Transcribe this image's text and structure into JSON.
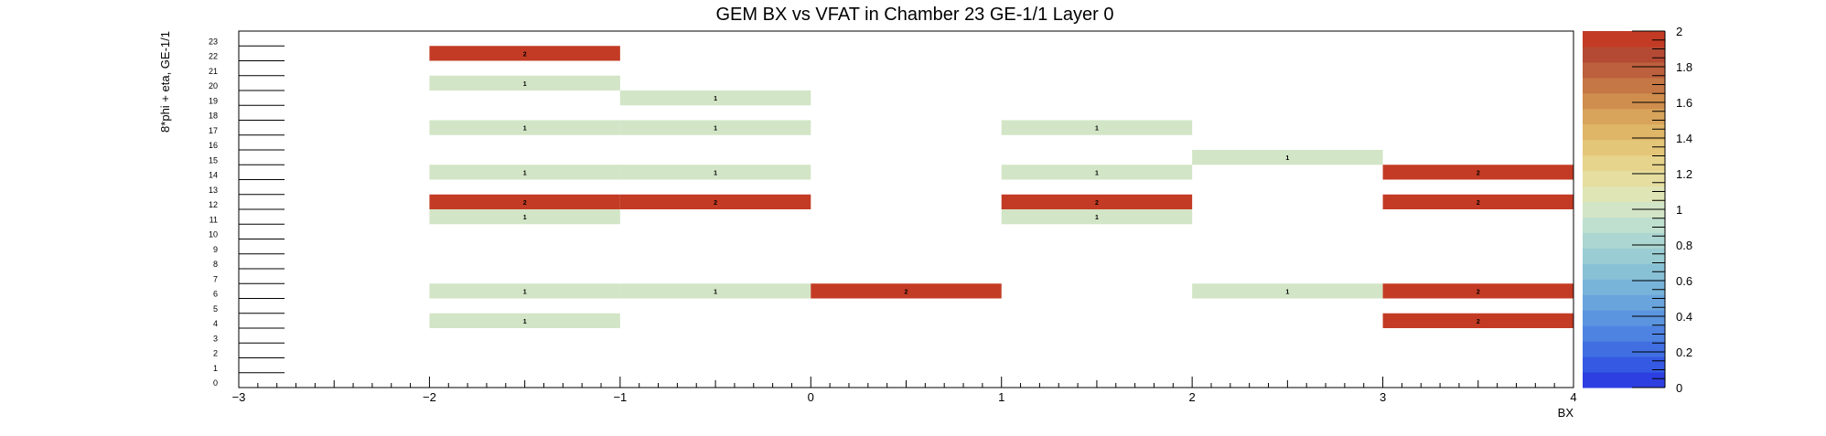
{
  "chart_data": {
    "type": "heatmap",
    "title": "GEM BX vs VFAT in Chamber 23 GE-1/1 Layer 0",
    "xlabel": "BX",
    "ylabel": "8*phi + eta, GE-1/1",
    "xlim": [
      -3,
      4
    ],
    "ylim": [
      0,
      24
    ],
    "x_ticks": [
      -3,
      -2,
      -1,
      0,
      1,
      2,
      3,
      4
    ],
    "y_ticks": [
      0,
      1,
      2,
      3,
      4,
      5,
      6,
      7,
      8,
      9,
      10,
      11,
      12,
      13,
      14,
      15,
      16,
      17,
      18,
      19,
      20,
      21,
      22,
      23
    ],
    "z_range": [
      0,
      2
    ],
    "colorbar_ticks": [
      0,
      0.2,
      0.4,
      0.6,
      0.8,
      1,
      1.2,
      1.4,
      1.6,
      1.8,
      2
    ],
    "colorbar_colors": [
      "#2d3fe0",
      "#3559e3",
      "#416fe2",
      "#4f83e1",
      "#5b95df",
      "#69a5dc",
      "#78b4d9",
      "#88c1d6",
      "#9accd3",
      "#acd6d1",
      "#bfdfcf",
      "#d2e5c6",
      "#dfe5b4",
      "#e5dea0",
      "#e6d38c",
      "#e4c679",
      "#dfb668",
      "#d8a35a",
      "#cf8e4e",
      "#c57745",
      "#bc603d",
      "#b54a34",
      "#c33b24"
    ],
    "grid": false,
    "legend": "colorbar-right",
    "cells": [
      {
        "x": -2,
        "y": 22,
        "z": 2
      },
      {
        "x": -2,
        "y": 20,
        "z": 1
      },
      {
        "x": -1,
        "y": 19,
        "z": 1
      },
      {
        "x": -2,
        "y": 17,
        "z": 1
      },
      {
        "x": -1,
        "y": 17,
        "z": 1
      },
      {
        "x": 1,
        "y": 17,
        "z": 1
      },
      {
        "x": 2,
        "y": 15,
        "z": 1
      },
      {
        "x": -2,
        "y": 14,
        "z": 1
      },
      {
        "x": -1,
        "y": 14,
        "z": 1
      },
      {
        "x": 1,
        "y": 14,
        "z": 1
      },
      {
        "x": 3,
        "y": 14,
        "z": 2
      },
      {
        "x": -2,
        "y": 12,
        "z": 2
      },
      {
        "x": -1,
        "y": 12,
        "z": 2
      },
      {
        "x": 1,
        "y": 12,
        "z": 2
      },
      {
        "x": 3,
        "y": 12,
        "z": 2
      },
      {
        "x": -2,
        "y": 11,
        "z": 1
      },
      {
        "x": 1,
        "y": 11,
        "z": 1
      },
      {
        "x": -2,
        "y": 6,
        "z": 1
      },
      {
        "x": -1,
        "y": 6,
        "z": 1
      },
      {
        "x": 0,
        "y": 6,
        "z": 2
      },
      {
        "x": 2,
        "y": 6,
        "z": 1
      },
      {
        "x": 3,
        "y": 6,
        "z": 2
      },
      {
        "x": -2,
        "y": 4,
        "z": 1
      },
      {
        "x": 3,
        "y": 4,
        "z": 2
      }
    ]
  }
}
